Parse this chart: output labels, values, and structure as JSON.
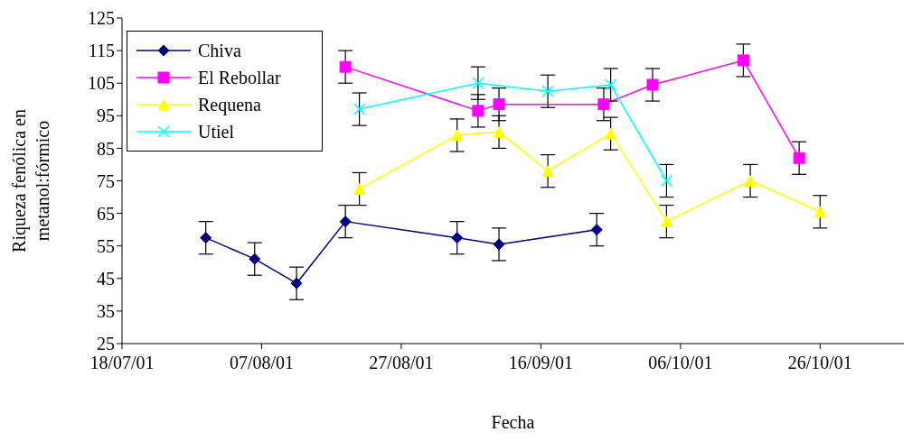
{
  "chart_data": {
    "type": "line",
    "xlabel": "Fecha",
    "ylabel": "Riqueza fenólica en metanol:fórmico",
    "xlim": [
      "2001-07-18",
      "2001-11-07"
    ],
    "xticks": [
      {
        "value": "2001-07-18",
        "label": "18/07/01"
      },
      {
        "value": "2001-08-07",
        "label": "07/08/01"
      },
      {
        "value": "2001-08-27",
        "label": "27/08/01"
      },
      {
        "value": "2001-09-16",
        "label": "16/09/01"
      },
      {
        "value": "2001-10-06",
        "label": "06/10/01"
      },
      {
        "value": "2001-10-26",
        "label": "26/10/01"
      }
    ],
    "ylim": [
      25,
      125
    ],
    "yticks": [
      25,
      35,
      45,
      55,
      65,
      75,
      85,
      95,
      105,
      115,
      125
    ],
    "grid": false,
    "legend": "top left",
    "series": [
      {
        "name": "Chiva",
        "color": "#000080",
        "marker": "diamond",
        "x": [
          "2001-07-30",
          "2001-08-06",
          "2001-08-12",
          "2001-08-19",
          "2001-09-04",
          "2001-09-10",
          "2001-09-24"
        ],
        "values": [
          57.5,
          51,
          43.5,
          62.5,
          57.5,
          55.5,
          60
        ],
        "errors": [
          5,
          5,
          5,
          5,
          5,
          5,
          5
        ]
      },
      {
        "name": "El Rebollar",
        "color": "#ff00ff",
        "marker": "square",
        "x": [
          "2001-08-19",
          "2001-09-07",
          "2001-09-10",
          "2001-09-25",
          "2001-10-02",
          "2001-10-15",
          "2001-10-23"
        ],
        "values": [
          110,
          96.5,
          98.5,
          98.5,
          104.5,
          112,
          82
        ],
        "errors": [
          5,
          5,
          5,
          5,
          5,
          5,
          5
        ]
      },
      {
        "name": "Requena",
        "color": "#ffff00",
        "marker": "triangle",
        "x": [
          "2001-08-21",
          "2001-09-04",
          "2001-09-10",
          "2001-09-17",
          "2001-09-26",
          "2001-10-04",
          "2001-10-16",
          "2001-10-26"
        ],
        "values": [
          72.5,
          89,
          90,
          78,
          89.5,
          62.5,
          75,
          65.5
        ],
        "errors": [
          5,
          5,
          5,
          5,
          5,
          5,
          5,
          5
        ]
      },
      {
        "name": "Utiel",
        "color": "#00ffff",
        "marker": "cross",
        "x": [
          "2001-08-21",
          "2001-09-07",
          "2001-09-17",
          "2001-09-26",
          "2001-10-04"
        ],
        "values": [
          97,
          105,
          102.5,
          104.5,
          75
        ],
        "errors": [
          5,
          5,
          5,
          5,
          5
        ]
      }
    ]
  }
}
